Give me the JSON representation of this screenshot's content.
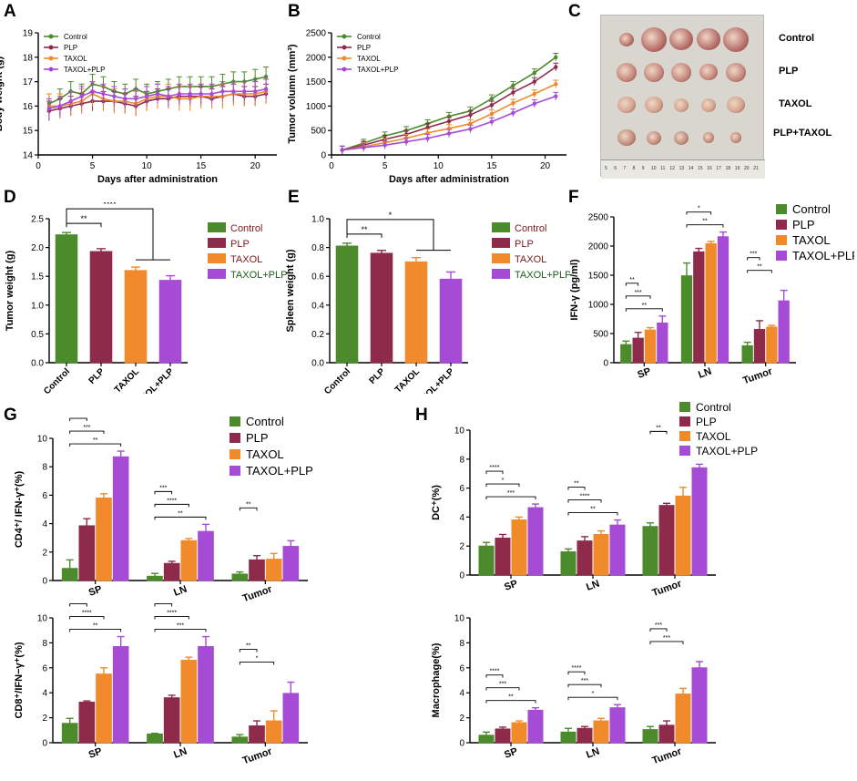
{
  "panel_labels": [
    "A",
    "B",
    "C",
    "D",
    "E",
    "F",
    "G",
    "H"
  ],
  "photo": {
    "row_labels": [
      "Control",
      "PLP",
      "TAXOL",
      "PLP+TAXOL"
    ],
    "ruler_ticks": [
      "5",
      "6",
      "7",
      "8",
      "9",
      "10",
      "11",
      "12",
      "13",
      "14",
      "15",
      "16",
      "17",
      "18",
      "19",
      "20",
      "21"
    ]
  },
  "colors": {
    "Control": "#4c8b2b",
    "PLP": "#8e2a4a",
    "TAXOL": "#f08a2b",
    "TAXOL+PLP": "#a64bd6"
  },
  "chart_data": [
    {
      "id": "A",
      "type": "line",
      "xlabel": "Days after administration",
      "ylabel": "Body weight (g)",
      "xlim": [
        0,
        22
      ],
      "ylim": [
        14,
        19
      ],
      "xticks": [
        0,
        5,
        10,
        15,
        20
      ],
      "yticks": [
        14,
        15,
        16,
        17,
        18,
        19
      ],
      "x": [
        1,
        2,
        3,
        4,
        5,
        6,
        7,
        8,
        9,
        10,
        11,
        12,
        13,
        14,
        15,
        16,
        17,
        18,
        19,
        20,
        21
      ],
      "series": [
        {
          "name": "Control",
          "values": [
            16.1,
            16.3,
            16.6,
            16.5,
            16.9,
            16.8,
            16.6,
            16.5,
            16.7,
            16.5,
            16.6,
            16.7,
            16.8,
            16.8,
            16.8,
            16.8,
            16.9,
            17.0,
            17.0,
            17.1,
            17.2
          ],
          "err": 0.4
        },
        {
          "name": "PLP",
          "values": [
            15.8,
            15.9,
            16.0,
            16.1,
            16.2,
            16.2,
            16.2,
            16.1,
            16.0,
            16.2,
            16.3,
            16.3,
            16.4,
            16.4,
            16.4,
            16.3,
            16.4,
            16.5,
            16.4,
            16.4,
            16.5
          ],
          "err": 0.4
        },
        {
          "name": "TAXOL",
          "values": [
            16.0,
            16.0,
            16.1,
            16.2,
            16.5,
            16.3,
            16.2,
            16.2,
            16.1,
            16.3,
            16.4,
            16.4,
            16.3,
            16.3,
            16.4,
            16.4,
            16.4,
            16.5,
            16.5,
            16.5,
            16.6
          ],
          "err": 0.5
        },
        {
          "name": "TAXOL+PLP",
          "values": [
            15.9,
            16.0,
            16.2,
            16.4,
            16.6,
            16.5,
            16.4,
            16.3,
            16.3,
            16.4,
            16.5,
            16.4,
            16.5,
            16.5,
            16.5,
            16.5,
            16.6,
            16.6,
            16.6,
            16.6,
            16.7
          ],
          "err": 0.4
        }
      ],
      "legend": "top-left"
    },
    {
      "id": "B",
      "type": "line",
      "xlabel": "Days after administration",
      "ylabel": "Tumor volumn (mm³)",
      "xlim": [
        0,
        22
      ],
      "ylim": [
        0,
        2500
      ],
      "xticks": [
        0,
        5,
        10,
        15,
        20
      ],
      "yticks": [
        0,
        500,
        1000,
        1500,
        2000,
        2500
      ],
      "x": [
        1,
        3,
        5,
        7,
        9,
        11,
        13,
        15,
        17,
        19,
        21
      ],
      "series": [
        {
          "name": "Control",
          "values": [
            100,
            240,
            390,
            500,
            640,
            790,
            900,
            1150,
            1420,
            1680,
            2000
          ],
          "err": 80
        },
        {
          "name": "PLP",
          "values": [
            100,
            200,
            320,
            420,
            560,
            690,
            820,
            1020,
            1280,
            1500,
            1800
          ],
          "err": 80
        },
        {
          "name": "TAXOL",
          "values": [
            100,
            170,
            250,
            340,
            450,
            540,
            640,
            840,
            1060,
            1250,
            1450
          ],
          "err": 80
        },
        {
          "name": "TAXOL+PLP",
          "values": [
            100,
            150,
            200,
            270,
            340,
            440,
            530,
            680,
            860,
            1050,
            1200
          ],
          "err": 80
        }
      ],
      "annotations": [
        "***",
        "****",
        "**"
      ],
      "legend": "top-left"
    },
    {
      "id": "D",
      "type": "bar",
      "ylabel": "Tumor weight (g)",
      "categories": [
        "Control",
        "PLP",
        "TAXOL",
        "TAXOL+PLP"
      ],
      "values": [
        2.22,
        1.93,
        1.6,
        1.43
      ],
      "err": [
        0.04,
        0.05,
        0.06,
        0.08
      ],
      "ylim": [
        0,
        2.5
      ],
      "yticks": [
        0,
        0.5,
        1.0,
        1.5,
        2.0,
        2.5
      ],
      "annotations": [
        "**",
        "****"
      ],
      "legend": "right"
    },
    {
      "id": "E",
      "type": "bar",
      "ylabel": "Spleen weight (g)",
      "categories": [
        "Control",
        "PLP",
        "TAXOL",
        "TAXOL+PLP"
      ],
      "values": [
        0.81,
        0.76,
        0.7,
        0.58
      ],
      "err": [
        0.02,
        0.02,
        0.03,
        0.05
      ],
      "ylim": [
        0,
        1.0
      ],
      "yticks": [
        0,
        0.2,
        0.4,
        0.6,
        0.8,
        1.0
      ],
      "annotations": [
        "**",
        "*"
      ],
      "legend": "right"
    },
    {
      "id": "F",
      "type": "bar",
      "ylabel": "IFN-γ (pg/ml)",
      "groups": [
        "SP",
        "LN",
        "Tumor"
      ],
      "series": [
        {
          "name": "Control",
          "values": [
            310,
            1490,
            290
          ],
          "err": [
            60,
            220,
            60
          ]
        },
        {
          "name": "PLP",
          "values": [
            420,
            1900,
            570
          ],
          "err": [
            100,
            60,
            150
          ]
        },
        {
          "name": "TAXOL",
          "values": [
            560,
            2040,
            610
          ],
          "err": [
            40,
            40,
            30
          ]
        },
        {
          "name": "TAXOL+PLP",
          "values": [
            680,
            2160,
            1060
          ],
          "err": [
            120,
            80,
            180
          ]
        }
      ],
      "ylim": [
        0,
        2500
      ],
      "yticks": [
        0,
        500,
        1000,
        1500,
        2000,
        2500
      ],
      "annotations": [
        "**",
        "***",
        "**",
        "*",
        "*",
        "**",
        "***",
        "**"
      ],
      "legend": "top-right"
    },
    {
      "id": "G1",
      "type": "bar",
      "ylabel": "CD4⁺/ IFN-γ⁺(%)",
      "groups": [
        "SP",
        "LN",
        "Tumor"
      ],
      "series": [
        {
          "name": "Control",
          "values": [
            0.85,
            0.3,
            0.45
          ],
          "err": [
            0.6,
            0.2,
            0.15
          ]
        },
        {
          "name": "PLP",
          "values": [
            3.85,
            1.2,
            1.45
          ],
          "err": [
            0.5,
            0.15,
            0.3
          ]
        },
        {
          "name": "TAXOL",
          "values": [
            5.8,
            2.8,
            1.5
          ],
          "err": [
            0.3,
            0.15,
            0.4
          ]
        },
        {
          "name": "TAXOL+PLP",
          "values": [
            8.7,
            3.45,
            2.4
          ],
          "err": [
            0.4,
            0.5,
            0.4
          ]
        }
      ],
      "ylim": [
        0,
        10
      ],
      "yticks": [
        0,
        2,
        4,
        6,
        8,
        10
      ],
      "annotations": [
        "****",
        "***",
        "**",
        "***",
        "****",
        "**",
        "**"
      ],
      "legend": "top-right"
    },
    {
      "id": "G2",
      "type": "bar",
      "ylabel": "CD8⁺/IFN−γ⁺(%)",
      "groups": [
        "SP",
        "LN",
        "Tumor"
      ],
      "series": [
        {
          "name": "Control",
          "values": [
            1.55,
            0.7,
            0.45
          ],
          "err": [
            0.4,
            0.05,
            0.2
          ]
        },
        {
          "name": "PLP",
          "values": [
            3.25,
            3.6,
            1.35
          ],
          "err": [
            0.1,
            0.2,
            0.4
          ]
        },
        {
          "name": "TAXOL",
          "values": [
            5.5,
            6.6,
            1.75
          ],
          "err": [
            0.5,
            0.25,
            0.8
          ]
        },
        {
          "name": "TAXOL+PLP",
          "values": [
            7.7,
            7.7,
            3.95
          ],
          "err": [
            0.8,
            0.8,
            0.9
          ]
        }
      ],
      "ylim": [
        0,
        10
      ],
      "yticks": [
        0,
        2,
        4,
        6,
        8,
        10
      ],
      "annotations": [
        "***",
        "****",
        "**",
        "****",
        "****",
        "***",
        "**",
        "*"
      ]
    },
    {
      "id": "H1",
      "type": "bar",
      "ylabel": "DC⁺(%)",
      "groups": [
        "SP",
        "LN",
        "Tumor"
      ],
      "series": [
        {
          "name": "Control",
          "values": [
            2.0,
            1.6,
            3.35
          ],
          "err": [
            0.25,
            0.2,
            0.25
          ]
        },
        {
          "name": "PLP",
          "values": [
            2.55,
            2.35,
            4.8
          ],
          "err": [
            0.25,
            0.3,
            0.15
          ]
        },
        {
          "name": "TAXOL",
          "values": [
            3.8,
            2.8,
            5.45
          ],
          "err": [
            0.2,
            0.25,
            0.6
          ]
        },
        {
          "name": "TAXOL+PLP",
          "values": [
            4.65,
            3.45,
            7.4
          ],
          "err": [
            0.25,
            0.35,
            0.25
          ]
        }
      ],
      "ylim": [
        0,
        10
      ],
      "yticks": [
        0,
        2,
        4,
        6,
        8,
        10
      ],
      "annotations": [
        "****",
        "*",
        "***",
        "**",
        "****",
        "**",
        "**"
      ],
      "legend": "top-right"
    },
    {
      "id": "H2",
      "type": "bar",
      "ylabel": "Macrophage(%)",
      "groups": [
        "SP",
        "LN",
        "Tumor"
      ],
      "series": [
        {
          "name": "Control",
          "values": [
            0.6,
            0.85,
            1.05
          ],
          "err": [
            0.25,
            0.3,
            0.25
          ]
        },
        {
          "name": "PLP",
          "values": [
            1.1,
            1.15,
            1.4
          ],
          "err": [
            0.15,
            0.15,
            0.35
          ]
        },
        {
          "name": "TAXOL",
          "values": [
            1.6,
            1.75,
            3.9
          ],
          "err": [
            0.15,
            0.2,
            0.45
          ]
        },
        {
          "name": "TAXOL+PLP",
          "values": [
            2.6,
            2.8,
            6.0
          ],
          "err": [
            0.2,
            0.25,
            0.5
          ]
        }
      ],
      "ylim": [
        0,
        10
      ],
      "yticks": [
        0,
        2,
        4,
        6,
        8,
        10
      ],
      "annotations": [
        "****",
        "***",
        "**",
        "****",
        "***",
        "*",
        "***",
        "***"
      ]
    }
  ]
}
